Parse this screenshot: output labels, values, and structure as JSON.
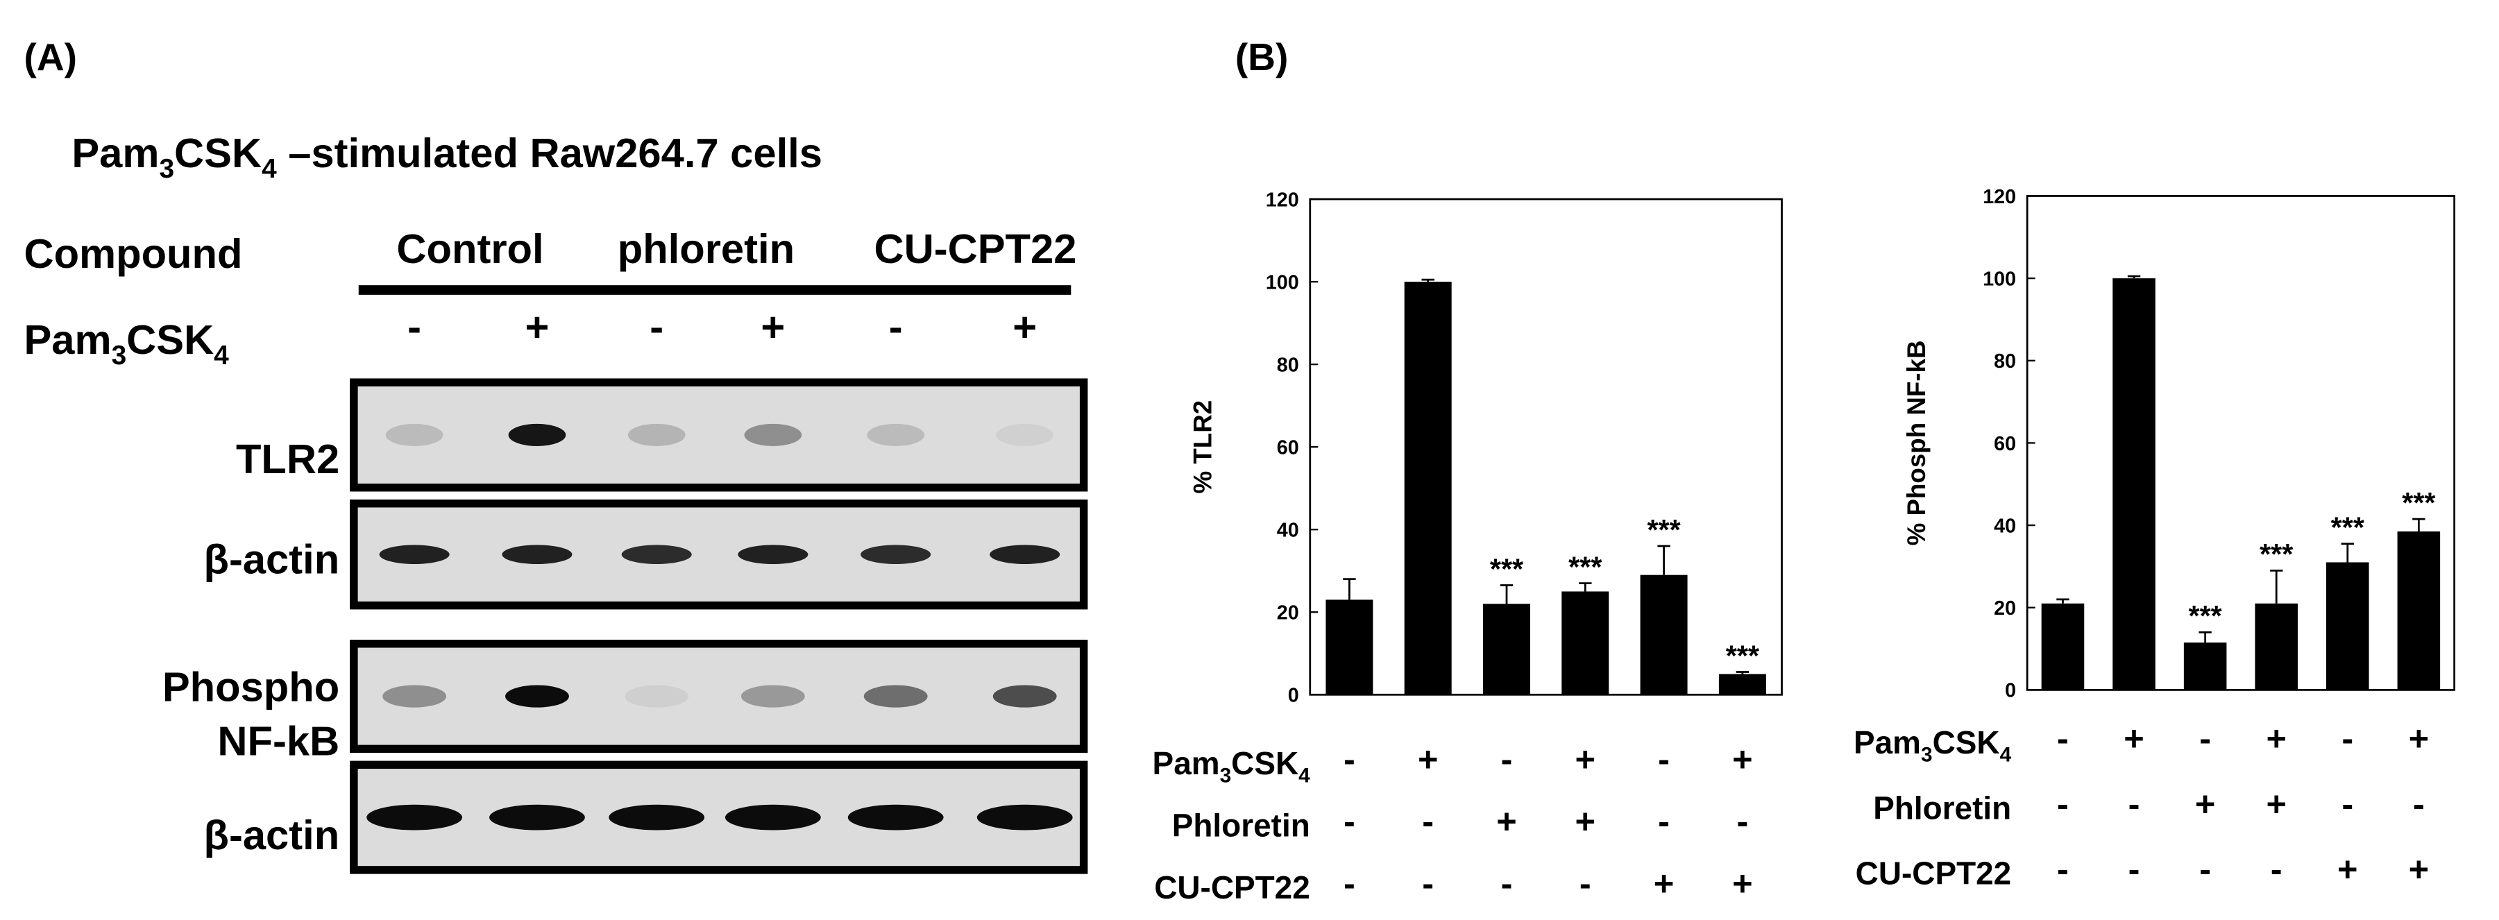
{
  "panel_a": {
    "label": "(A)",
    "title": [
      "Pam",
      "3",
      "CSK",
      "4",
      " –stimulated Raw264.7 cells"
    ],
    "compound_label": "Compound",
    "compounds": [
      "Control",
      "phloretin",
      "CU-CPT22"
    ],
    "stimulus_label": [
      "Pam",
      "3",
      "CSK",
      "4"
    ],
    "stimulus_signs": [
      "-",
      "+",
      "-",
      "+",
      "-",
      "+"
    ],
    "blots": [
      {
        "label": [
          "TLR2"
        ]
      },
      {
        "label": [
          "β-actin"
        ]
      },
      {
        "label": [
          "Phospho",
          "NF-kB"
        ]
      },
      {
        "label": [
          "β-actin"
        ]
      }
    ]
  },
  "panel_b": {
    "label": "(B)"
  },
  "chart_data": [
    {
      "type": "bar",
      "ylabel": "% TLR2",
      "values": [
        23,
        100,
        22,
        25,
        29,
        5
      ],
      "errors": [
        5,
        0.5,
        4.5,
        2,
        7,
        0.5
      ],
      "significance": [
        null,
        null,
        "***",
        "***",
        "***",
        "***"
      ],
      "color": "#000000",
      "ylim": [
        0,
        120
      ],
      "yticks": [
        0,
        20,
        40,
        60,
        80,
        100,
        120
      ],
      "treatments": [
        {
          "name": [
            "Pam",
            "3",
            "CSK",
            "4"
          ],
          "signs": [
            "-",
            "+",
            "-",
            "+",
            "-",
            "+"
          ]
        },
        {
          "name": [
            "Phloretin"
          ],
          "signs": [
            "-",
            "-",
            "+",
            "+",
            "-",
            "-"
          ]
        },
        {
          "name": [
            "CU-CPT22"
          ],
          "signs": [
            "-",
            "-",
            "-",
            "-",
            "+",
            "+"
          ]
        }
      ]
    },
    {
      "type": "bar",
      "ylabel": "% Phosph NF-kB",
      "values": [
        21,
        100,
        11.5,
        21,
        31,
        38.5
      ],
      "errors": [
        1,
        0.5,
        2.5,
        8,
        4.5,
        3
      ],
      "significance": [
        null,
        null,
        "***",
        "***",
        "***",
        "***"
      ],
      "color": "#000000",
      "ylim": [
        0,
        120
      ],
      "yticks": [
        0,
        20,
        40,
        60,
        80,
        100,
        120
      ],
      "treatments": [
        {
          "name": [
            "Pam",
            "3",
            "CSK",
            "4"
          ],
          "signs": [
            "-",
            "+",
            "-",
            "+",
            "-",
            "+"
          ]
        },
        {
          "name": [
            "Phloretin"
          ],
          "signs": [
            "-",
            "-",
            "+",
            "+",
            "-",
            "-"
          ]
        },
        {
          "name": [
            "CU-CPT22"
          ],
          "signs": [
            "-",
            "-",
            "-",
            "-",
            "+",
            "+"
          ]
        }
      ]
    }
  ]
}
